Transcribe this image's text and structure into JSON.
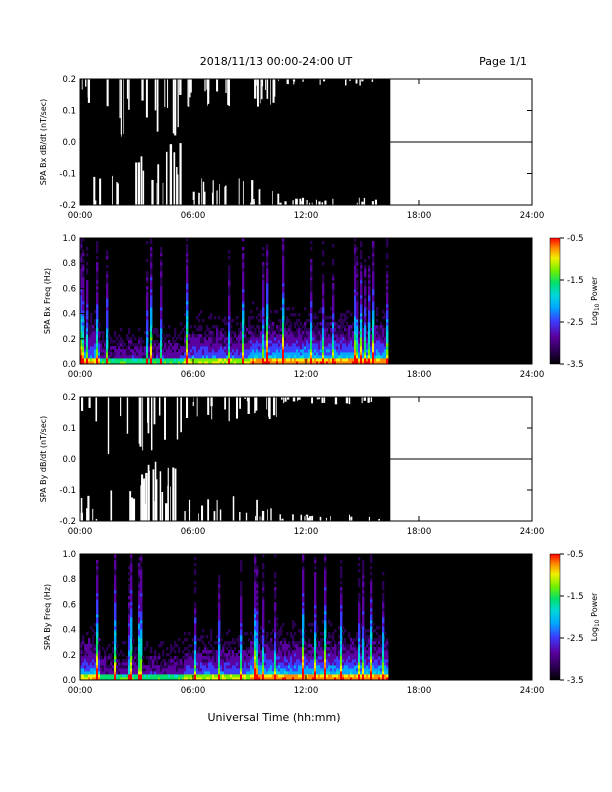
{
  "header": {
    "title": "2018/11/13  00:00-24:00 UT",
    "page": "Page 1/1"
  },
  "xlabel": "Universal Time (hh:mm)",
  "colors": {
    "background": "#ffffff",
    "panel_fill": "#000000",
    "colormap": [
      "#000000",
      "#2a0050",
      "#5a00a0",
      "#3c3cff",
      "#00a8ff",
      "#00d8d8",
      "#00e070",
      "#70f000",
      "#f0f000",
      "#ff8c00",
      "#ff0000"
    ]
  },
  "chart_data": [
    {
      "type": "line",
      "ylabel": "SPA Bx dB/dt (nT/sec)",
      "x_ticks": [
        "00:00",
        "06:00",
        "12:00",
        "18:00",
        "24:00"
      ],
      "y_ticks": [
        "-0.2",
        "-0.1",
        "0.0",
        "0.1",
        "0.2"
      ],
      "xlim": [
        0,
        24
      ],
      "ylim": [
        -0.2,
        0.2
      ],
      "data_end_hour": 16.45,
      "after_end_value": 0.0,
      "note_dense": "signal exceeds +/-0.2 nearly everywhere before 16.45 h; quiet near 01:00-05:30"
    },
    {
      "type": "heatmap",
      "ylabel": "SPA Bx Freq (Hz)",
      "x_ticks": [
        "00:00",
        "06:00",
        "12:00",
        "18:00",
        "24:00"
      ],
      "y_ticks": [
        "0.0",
        "0.2",
        "0.4",
        "0.6",
        "0.8",
        "1.0"
      ],
      "xlim": [
        0,
        24
      ],
      "ylim": [
        0,
        1.0
      ],
      "data_end_hour": 16.45,
      "colorbar": {
        "label": "Log",
        "label_sub": "10",
        "label_tail": " Power",
        "ticks": [
          "-0.5",
          "-1.5",
          "-2.5",
          "-3.5"
        ],
        "range": [
          -3.5,
          -0.5
        ]
      }
    },
    {
      "type": "line",
      "ylabel": "SPA By dB/dt (nT/sec)",
      "x_ticks": [
        "00:00",
        "06:00",
        "12:00",
        "18:00",
        "24:00"
      ],
      "y_ticks": [
        "-0.2",
        "-0.1",
        "0.0",
        "0.1",
        "0.2"
      ],
      "xlim": [
        0,
        24
      ],
      "ylim": [
        -0.2,
        0.2
      ],
      "data_end_hour": 16.45,
      "after_end_value": 0.0
    },
    {
      "type": "heatmap",
      "ylabel": "SPA By Freq (Hz)",
      "x_ticks": [
        "00:00",
        "06:00",
        "12:00",
        "18:00",
        "24:00"
      ],
      "y_ticks": [
        "0.0",
        "0.2",
        "0.4",
        "0.6",
        "0.8",
        "1.0"
      ],
      "xlim": [
        0,
        24
      ],
      "ylim": [
        0,
        1.0
      ],
      "data_end_hour": 16.45,
      "colorbar": {
        "label": "Log",
        "label_sub": "10",
        "label_tail": " Power",
        "ticks": [
          "-0.5",
          "-1.5",
          "-2.5",
          "-3.5"
        ],
        "range": [
          -3.5,
          -0.5
        ]
      }
    }
  ]
}
